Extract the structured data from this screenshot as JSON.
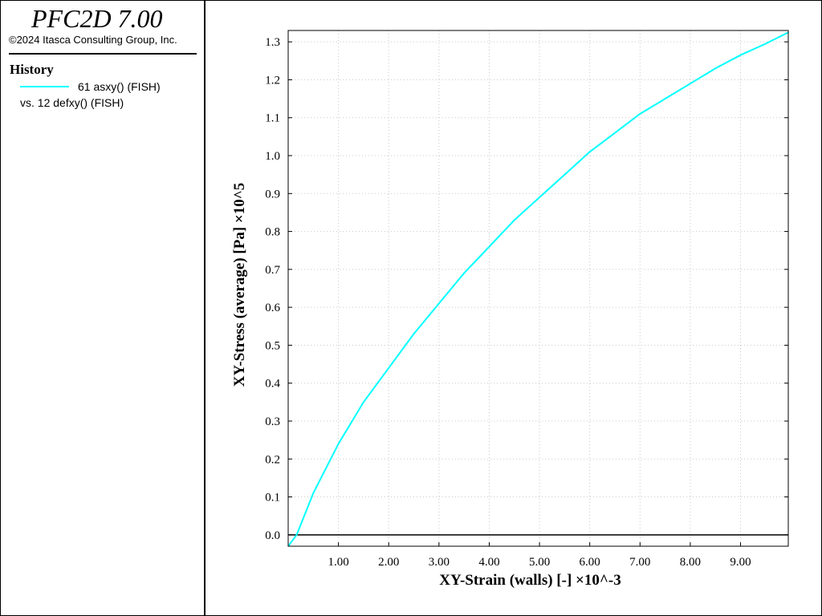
{
  "app": {
    "title": "PFC2D 7.00",
    "copyright": "©2024 Itasca Consulting Group, Inc."
  },
  "legend": {
    "heading": "History",
    "series_label": "61 asxy() (FISH)",
    "vs_label": "vs. 12 defxy() (FISH)",
    "series_color": "#00ffff"
  },
  "chart_data": {
    "type": "line",
    "xlabel": "XY-Strain (walls) [-] ×10^-3",
    "ylabel": "XY-Stress (average) [Pa] ×10^5",
    "xlim": [
      0.0,
      9.95
    ],
    "ylim": [
      -0.03,
      1.33
    ],
    "grid": true,
    "x_ticks": [
      "1.00",
      "2.00",
      "3.00",
      "4.00",
      "5.00",
      "6.00",
      "7.00",
      "8.00",
      "9.00"
    ],
    "y_ticks": [
      "0.0",
      "0.1",
      "0.2",
      "0.3",
      "0.4",
      "0.5",
      "0.6",
      "0.7",
      "0.8",
      "0.9",
      "1.0",
      "1.1",
      "1.2",
      "1.3"
    ],
    "series": [
      {
        "name": "61 asxy() (FISH)",
        "color": "#00ffff",
        "x": [
          0.0,
          0.17,
          0.5,
          1.0,
          1.5,
          2.0,
          2.5,
          3.0,
          3.5,
          4.0,
          4.5,
          5.0,
          5.5,
          6.0,
          6.5,
          7.0,
          7.5,
          8.0,
          8.5,
          9.0,
          9.5,
          9.95
        ],
        "y": [
          -0.03,
          0.0,
          0.11,
          0.24,
          0.35,
          0.44,
          0.53,
          0.61,
          0.69,
          0.76,
          0.83,
          0.89,
          0.95,
          1.01,
          1.06,
          1.11,
          1.15,
          1.19,
          1.23,
          1.265,
          1.295,
          1.325
        ]
      }
    ]
  }
}
